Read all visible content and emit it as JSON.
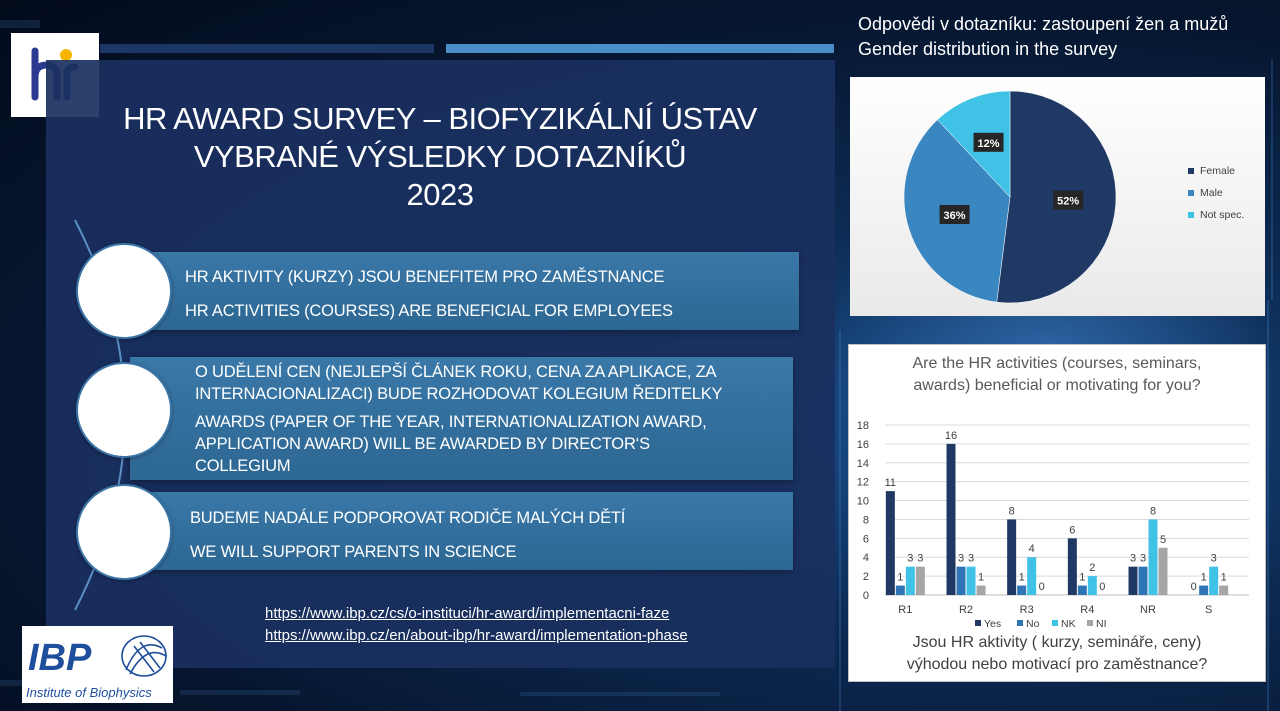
{
  "slide": {
    "title_lines": [
      "HR AWARD SURVEY – BIOFYZIKÁLNÍ ÚSTAV",
      "VYBRANÉ VÝSLEDKY DOTAZNÍKŮ",
      "2023"
    ],
    "items": [
      {
        "lines_cz": [
          "HR AKTIVITY (KURZY) JSOU BENEFITEM PRO ZAMĚSTNANCE"
        ],
        "lines_en": [
          "HR ACTIVITIES (COURSES) ARE BENEFICIAL FOR EMPLOYEES"
        ]
      },
      {
        "lines_cz": [
          "O UDĚLENÍ CEN (NEJLEPŠÍ ČLÁNEK ROKU,  CENA ZA APLIKACE, ZA",
          "INTERNACIONALIZACI) BUDE ROZHODOVAT KOLEGIUM ŘEDITELKY"
        ],
        "lines_en": [
          "AWARDS (PAPER OF THE YEAR, INTERNATIONALIZATION AWARD,",
          "APPLICATION AWARD) WILL BE AWARDED BY DIRECTOR‘S",
          "COLLEGIUM"
        ]
      },
      {
        "lines_cz": [
          "BUDEME NADÁLE PODPOROVAT RODIČE MALÝCH DĚTÍ"
        ],
        "lines_en": [
          "WE WILL SUPPORT PARENTS IN SCIENCE"
        ]
      }
    ],
    "links": [
      "https://www.ibp.cz/cs/o-instituci/hr-award/implementacni-faze",
      "https://www.ibp.cz/en/about-ibp/hr-award/implementation-phase"
    ],
    "logos": {
      "hr_logo": {
        "name": "hr-excellence-logo",
        "text": "hr",
        "colors": [
          "#2b3990",
          "#f7b500"
        ]
      },
      "ibp_logo": {
        "name": "ibp-logo",
        "text": "IBP",
        "subtitle": "Institute of Biophysics",
        "color": "#1f4e9c"
      }
    }
  },
  "pie_heading": [
    "Odpovědi v dotazníku: zastoupení žen a mužů",
    "Gender distribution in the survey"
  ],
  "chart_data": [
    {
      "type": "pie",
      "slices": [
        {
          "label": "Female",
          "value": 52,
          "display": "52%",
          "color": "#1f3864"
        },
        {
          "label": "Male",
          "value": 36,
          "display": "36%",
          "color": "#3a86c0"
        },
        {
          "label": "Not spec.",
          "value": 12,
          "display": "12%",
          "color": "#3fc2e6"
        }
      ],
      "legend": "right"
    },
    {
      "type": "bar",
      "title_lines": [
        "Are the HR activities (courses, seminars,",
        "awards) beneficial or motivating for you?"
      ],
      "footer_lines": [
        "Jsou HR aktivity ( kurzy, semináře, ceny)",
        "výhodou nebo motivací pro zaměstnance?"
      ],
      "categories": [
        "R1",
        "R2",
        "R3",
        "R4",
        "NR",
        "S"
      ],
      "series": [
        {
          "name": "Yes",
          "values": [
            11,
            16,
            8,
            6,
            3,
            0
          ],
          "color": "#1f3864"
        },
        {
          "name": "No",
          "values": [
            1,
            3,
            1,
            1,
            3,
            1
          ],
          "color": "#2f75b5"
        },
        {
          "name": "NK",
          "values": [
            3,
            3,
            4,
            2,
            8,
            3
          ],
          "color": "#3fc2e6"
        },
        {
          "name": "NI",
          "values": [
            3,
            1,
            0,
            0,
            5,
            1
          ],
          "color": "#a5a5a5"
        }
      ],
      "ylim": [
        0,
        18
      ],
      "yticks": [
        "0",
        "2",
        "4",
        "6",
        "8",
        "10",
        "12",
        "14",
        "16",
        "18"
      ],
      "grid": true,
      "legend": "bottom"
    }
  ]
}
